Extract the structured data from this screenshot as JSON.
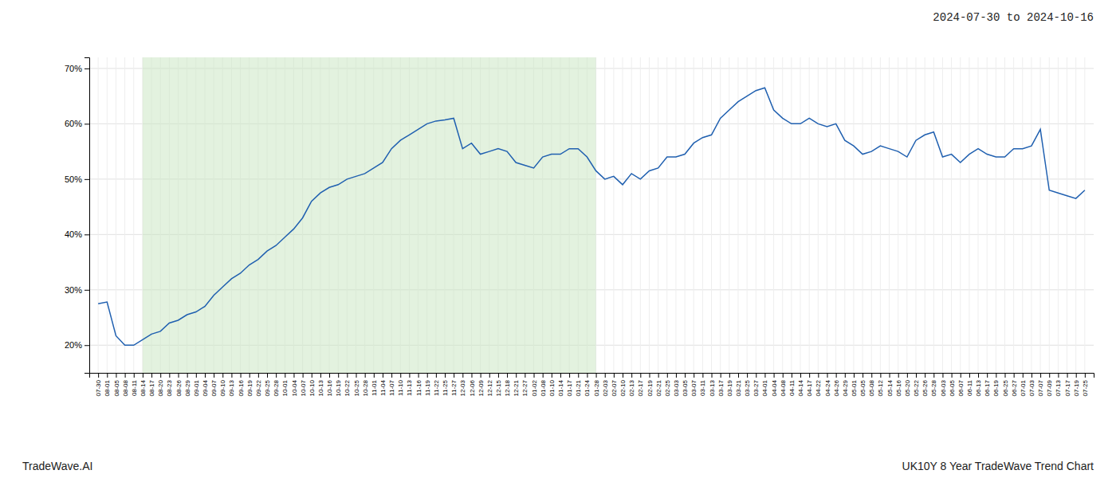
{
  "chart_data": {
    "type": "line",
    "title": "2024-07-30 to 2024-10-16",
    "annotations": [
      "TradeWave.AI",
      "UK10Y 8 Year TradeWave Trend Chart"
    ],
    "categories": [
      "07-30",
      "08-01",
      "08-05",
      "08-08",
      "08-11",
      "08-14",
      "08-17",
      "08-20",
      "08-23",
      "08-26",
      "08-29",
      "09-01",
      "09-04",
      "09-07",
      "09-10",
      "09-13",
      "09-16",
      "09-19",
      "09-22",
      "09-25",
      "09-28",
      "10-01",
      "10-04",
      "10-07",
      "10-10",
      "10-13",
      "10-16",
      "10-19",
      "10-22",
      "10-25",
      "10-28",
      "11-01",
      "11-04",
      "11-07",
      "11-10",
      "11-13",
      "11-16",
      "11-19",
      "11-22",
      "11-25",
      "11-27",
      "12-03",
      "12-06",
      "12-09",
      "12-12",
      "12-15",
      "12-18",
      "12-21",
      "12-27",
      "01-02",
      "01-08",
      "01-10",
      "01-14",
      "01-17",
      "01-21",
      "01-24",
      "01-28",
      "02-03",
      "02-07",
      "02-10",
      "02-13",
      "02-17",
      "02-19",
      "02-21",
      "02-25",
      "03-03",
      "03-05",
      "03-07",
      "03-11",
      "03-13",
      "03-17",
      "03-19",
      "03-21",
      "03-25",
      "03-27",
      "04-01",
      "04-04",
      "04-08",
      "04-11",
      "04-14",
      "04-17",
      "04-22",
      "04-24",
      "04-26",
      "04-29",
      "05-01",
      "05-05",
      "05-08",
      "05-12",
      "05-14",
      "05-16",
      "05-20",
      "05-22",
      "05-26",
      "05-28",
      "06-03",
      "06-05",
      "06-07",
      "06-11",
      "06-13",
      "06-17",
      "06-19",
      "06-25",
      "06-27",
      "07-01",
      "07-03",
      "07-07",
      "07-09",
      "07-13",
      "07-17",
      "07-19",
      "07-25"
    ],
    "values": [
      0.275,
      0.278,
      0.217,
      0.2,
      0.2,
      0.21,
      0.22,
      0.225,
      0.24,
      0.245,
      0.255,
      0.26,
      0.27,
      0.29,
      0.305,
      0.32,
      0.33,
      0.345,
      0.355,
      0.37,
      0.38,
      0.395,
      0.41,
      0.43,
      0.46,
      0.475,
      0.485,
      0.49,
      0.5,
      0.505,
      0.51,
      0.52,
      0.53,
      0.555,
      0.57,
      0.58,
      0.59,
      0.6,
      0.605,
      0.607,
      0.61,
      0.555,
      0.565,
      0.545,
      0.55,
      0.555,
      0.55,
      0.53,
      0.525,
      0.52,
      0.54,
      0.545,
      0.545,
      0.555,
      0.555,
      0.54,
      0.515,
      0.5,
      0.505,
      0.49,
      0.51,
      0.5,
      0.515,
      0.52,
      0.54,
      0.54,
      0.545,
      0.565,
      0.575,
      0.58,
      0.61,
      0.625,
      0.64,
      0.65,
      0.66,
      0.665,
      0.625,
      0.61,
      0.6,
      0.6,
      0.61,
      0.6,
      0.595,
      0.6,
      0.57,
      0.56,
      0.545,
      0.55,
      0.56,
      0.555,
      0.55,
      0.54,
      0.57,
      0.58,
      0.585,
      0.54,
      0.545,
      0.53,
      0.545,
      0.555,
      0.545,
      0.54,
      0.54,
      0.555,
      0.555,
      0.56,
      0.59,
      0.48,
      0.475,
      0.47,
      0.465,
      0.48
    ],
    "color": "#2060b0",
    "shaded_range": {
      "from": "08-14",
      "to": "01-28",
      "color": "#c8e6c0"
    },
    "ylim": [
      0.15,
      0.72
    ],
    "yticks": [
      {
        "value": 0.2,
        "label": "20%"
      },
      {
        "value": 0.3,
        "label": "30%"
      },
      {
        "value": 0.4,
        "label": "40%"
      },
      {
        "value": 0.5,
        "label": "50%"
      },
      {
        "value": 0.6,
        "label": "60%"
      },
      {
        "value": 0.7,
        "label": "70%"
      }
    ],
    "grid": true
  }
}
